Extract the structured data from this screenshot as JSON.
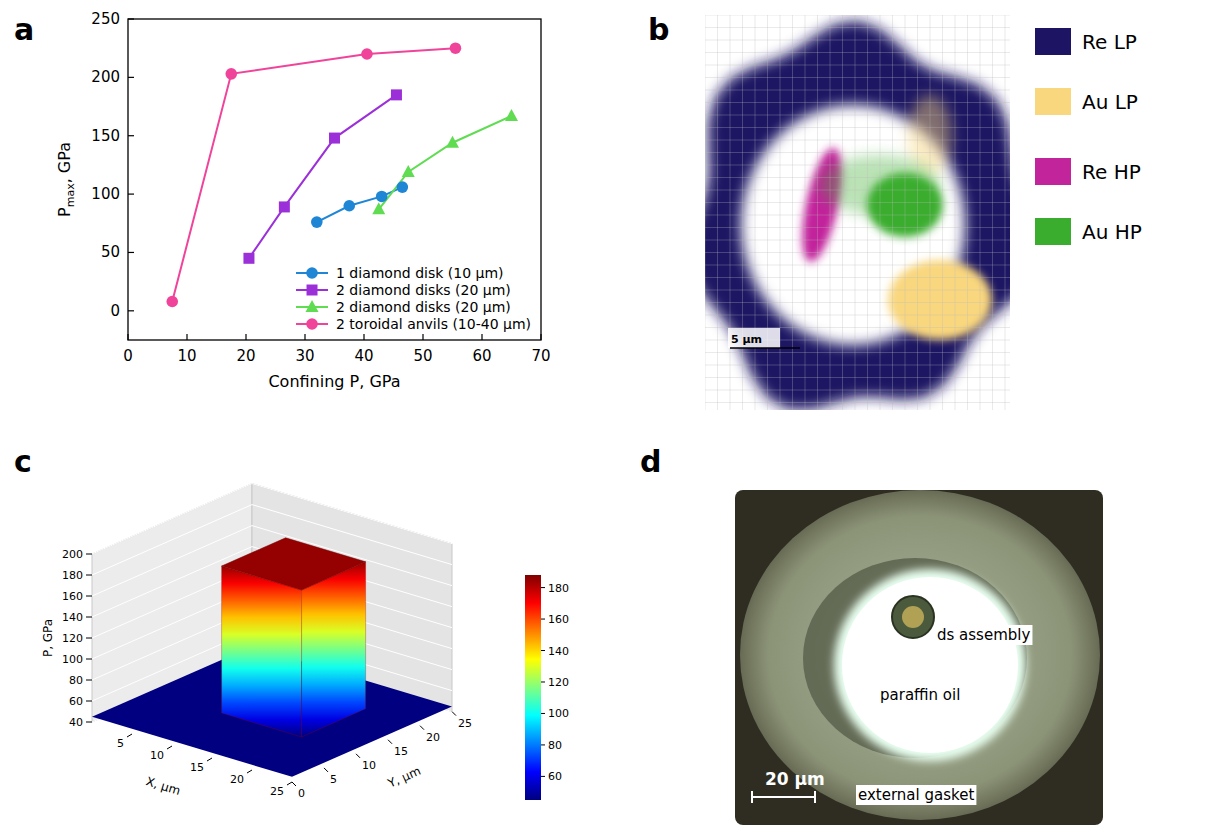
{
  "panel_labels": [
    "a",
    "b",
    "c",
    "d"
  ],
  "chart_data": {
    "type": "line",
    "x_label": "Confining P, GPa",
    "y_label": "Pmax, GPa",
    "xlim": [
      0,
      70
    ],
    "xticks": [
      0,
      10,
      20,
      30,
      40,
      50,
      60,
      70
    ],
    "ylim": [
      -25,
      250
    ],
    "yticks": [
      0,
      50,
      100,
      150,
      200,
      250
    ],
    "legend": "lower right",
    "series": [
      {
        "name": "1 diamond disk (10 μm)",
        "color": "#1f86d6",
        "marker": "circle",
        "x": [
          32,
          37.5,
          43,
          46.5
        ],
        "values": [
          76,
          90,
          98,
          106
        ]
      },
      {
        "name": "2 diamond disks (20 μm)",
        "color": "#9b30d9",
        "marker": "square",
        "x": [
          20.5,
          26.5,
          35,
          45.5
        ],
        "values": [
          45,
          89,
          148,
          185
        ]
      },
      {
        "name": "2 diamond disks (20 μm)",
        "color": "#5fdc52",
        "marker": "triangle",
        "x": [
          42.5,
          47.5,
          55,
          65
        ],
        "values": [
          87,
          119,
          144,
          167
        ]
      },
      {
        "name": "2 toroidal anvils (10-40 μm)",
        "color": "#f0449a",
        "marker": "circle",
        "x": [
          7.5,
          17.5,
          40.5,
          55.5
        ],
        "values": [
          8,
          203,
          220,
          225
        ]
      }
    ]
  },
  "map": {
    "legend": [
      {
        "name": "Re LP",
        "color": "#1d1463"
      },
      {
        "name": "Au LP",
        "color": "#f9d77e"
      },
      {
        "name": "Re HP",
        "color": "#c2249b"
      },
      {
        "name": "Au HP",
        "color": "#3aad2f"
      }
    ],
    "scale_bar": "5 μm"
  },
  "surface": {
    "x_label": "X, μm",
    "y_label": "Y, μm",
    "z_label": "P, GPa",
    "xlim": [
      0,
      25
    ],
    "xticks": [
      5,
      10,
      15,
      20,
      25
    ],
    "ylim": [
      0,
      25
    ],
    "yticks": [
      0,
      5,
      10,
      15,
      20,
      25
    ],
    "zlim": [
      40,
      200
    ],
    "zticks": [
      40,
      60,
      80,
      100,
      120,
      140,
      160,
      180,
      200
    ],
    "floor_p": 45,
    "plateau": {
      "x": [
        9,
        19
      ],
      "y": [
        9,
        19
      ],
      "p": 185
    },
    "colorbar": {
      "range": [
        45,
        188
      ],
      "ticks": [
        60,
        80,
        100,
        120,
        140,
        160,
        180
      ]
    }
  },
  "photo": {
    "labels": [
      "ds assembly",
      "paraffin oil",
      "external gasket"
    ],
    "scale_bar": "20 μm"
  }
}
